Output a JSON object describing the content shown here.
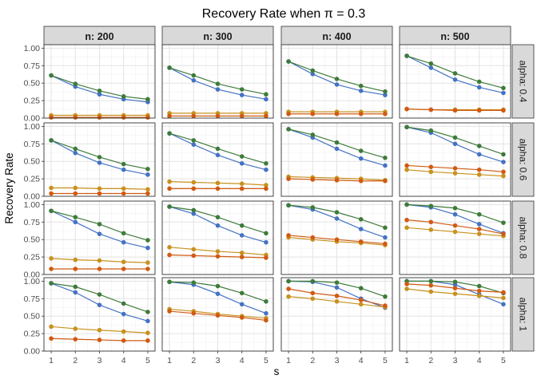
{
  "chart_data": {
    "type": "line",
    "title": "Recovery Rate when π = 0.3",
    "xlabel": "s",
    "ylabel": "Recovery Rate",
    "x": [
      1,
      2,
      3,
      4,
      5
    ],
    "x_ticks": [
      "1",
      "2",
      "3",
      "4",
      "5"
    ],
    "y_ticks": [
      "0.00",
      "0.25",
      "0.50",
      "0.75",
      "1.00"
    ],
    "ylim": [
      0,
      1.05
    ],
    "grid": true,
    "col_facets": [
      "n: 200",
      "n: 300",
      "n: 400",
      "n: 500"
    ],
    "row_facets": [
      "alpha: 0.4",
      "alpha: 0.6",
      "alpha: 0.8",
      "alpha: 1"
    ],
    "series_colors": [
      "#4472C4",
      "#3E7B3A",
      "#C8911E",
      "#D05A12"
    ],
    "panels": [
      [
        {
          "series": [
            {
              "values": [
                0.61,
                0.45,
                0.34,
                0.27,
                0.23
              ]
            },
            {
              "values": [
                0.61,
                0.49,
                0.39,
                0.31,
                0.27
              ]
            },
            {
              "values": [
                0.04,
                0.04,
                0.04,
                0.04,
                0.04
              ]
            },
            {
              "values": [
                0.01,
                0.01,
                0.01,
                0.01,
                0.01
              ]
            }
          ]
        },
        {
          "series": [
            {
              "values": [
                0.72,
                0.54,
                0.41,
                0.33,
                0.27
              ]
            },
            {
              "values": [
                0.72,
                0.61,
                0.49,
                0.41,
                0.34
              ]
            },
            {
              "values": [
                0.07,
                0.07,
                0.07,
                0.07,
                0.07
              ]
            },
            {
              "values": [
                0.03,
                0.03,
                0.03,
                0.03,
                0.03
              ]
            }
          ]
        },
        {
          "series": [
            {
              "values": [
                0.81,
                0.63,
                0.48,
                0.39,
                0.33
              ]
            },
            {
              "values": [
                0.81,
                0.68,
                0.56,
                0.46,
                0.38
              ]
            },
            {
              "values": [
                0.09,
                0.09,
                0.09,
                0.09,
                0.09
              ]
            },
            {
              "values": [
                0.06,
                0.06,
                0.06,
                0.06,
                0.06
              ]
            }
          ]
        },
        {
          "series": [
            {
              "values": [
                0.89,
                0.72,
                0.55,
                0.44,
                0.36
              ]
            },
            {
              "values": [
                0.89,
                0.78,
                0.64,
                0.52,
                0.43
              ]
            },
            {
              "values": [
                0.13,
                0.12,
                0.12,
                0.12,
                0.12
              ]
            },
            {
              "values": [
                0.13,
                0.12,
                0.11,
                0.11,
                0.11
              ]
            }
          ]
        }
      ],
      [
        {
          "series": [
            {
              "values": [
                0.8,
                0.62,
                0.48,
                0.38,
                0.31
              ]
            },
            {
              "values": [
                0.8,
                0.68,
                0.56,
                0.46,
                0.39
              ]
            },
            {
              "values": [
                0.12,
                0.12,
                0.11,
                0.11,
                0.1
              ]
            },
            {
              "values": [
                0.04,
                0.04,
                0.04,
                0.04,
                0.04
              ]
            }
          ]
        },
        {
          "series": [
            {
              "values": [
                0.9,
                0.74,
                0.59,
                0.47,
                0.38
              ]
            },
            {
              "values": [
                0.9,
                0.8,
                0.68,
                0.57,
                0.47
              ]
            },
            {
              "values": [
                0.21,
                0.2,
                0.19,
                0.18,
                0.16
              ]
            },
            {
              "values": [
                0.11,
                0.11,
                0.11,
                0.11,
                0.11
              ]
            }
          ]
        },
        {
          "series": [
            {
              "values": [
                0.96,
                0.84,
                0.68,
                0.54,
                0.44
              ]
            },
            {
              "values": [
                0.96,
                0.88,
                0.77,
                0.65,
                0.55
              ]
            },
            {
              "values": [
                0.28,
                0.27,
                0.26,
                0.25,
                0.23
              ]
            },
            {
              "values": [
                0.25,
                0.24,
                0.23,
                0.22,
                0.22
              ]
            }
          ]
        },
        {
          "series": [
            {
              "values": [
                0.99,
                0.91,
                0.75,
                0.6,
                0.49
              ]
            },
            {
              "values": [
                0.99,
                0.94,
                0.84,
                0.72,
                0.6
              ]
            },
            {
              "values": [
                0.38,
                0.35,
                0.33,
                0.31,
                0.29
              ]
            },
            {
              "values": [
                0.44,
                0.42,
                0.4,
                0.38,
                0.35
              ]
            }
          ]
        }
      ],
      [
        {
          "series": [
            {
              "values": [
                0.91,
                0.75,
                0.58,
                0.46,
                0.38
              ]
            },
            {
              "values": [
                0.91,
                0.82,
                0.72,
                0.59,
                0.49
              ]
            },
            {
              "values": [
                0.23,
                0.21,
                0.2,
                0.18,
                0.17
              ]
            },
            {
              "values": [
                0.08,
                0.08,
                0.08,
                0.08,
                0.08
              ]
            }
          ]
        },
        {
          "series": [
            {
              "values": [
                0.97,
                0.87,
                0.7,
                0.56,
                0.46
              ]
            },
            {
              "values": [
                0.97,
                0.92,
                0.82,
                0.7,
                0.59
              ]
            },
            {
              "values": [
                0.39,
                0.36,
                0.33,
                0.31,
                0.28
              ]
            },
            {
              "values": [
                0.28,
                0.27,
                0.26,
                0.25,
                0.24
              ]
            }
          ]
        },
        {
          "series": [
            {
              "values": [
                0.99,
                0.93,
                0.8,
                0.65,
                0.53
              ]
            },
            {
              "values": [
                0.99,
                0.96,
                0.89,
                0.79,
                0.67
              ]
            },
            {
              "values": [
                0.53,
                0.5,
                0.47,
                0.45,
                0.42
              ]
            },
            {
              "values": [
                0.56,
                0.53,
                0.5,
                0.47,
                0.44
              ]
            }
          ]
        },
        {
          "series": [
            {
              "values": [
                1.0,
                0.96,
                0.86,
                0.72,
                0.59
              ]
            },
            {
              "values": [
                1.0,
                0.98,
                0.95,
                0.86,
                0.74
              ]
            },
            {
              "values": [
                0.67,
                0.64,
                0.61,
                0.58,
                0.55
              ]
            },
            {
              "values": [
                0.78,
                0.75,
                0.7,
                0.65,
                0.58
              ]
            }
          ]
        }
      ],
      [
        {
          "series": [
            {
              "values": [
                0.97,
                0.84,
                0.66,
                0.53,
                0.43
              ]
            },
            {
              "values": [
                0.97,
                0.92,
                0.81,
                0.68,
                0.56
              ]
            },
            {
              "values": [
                0.35,
                0.32,
                0.3,
                0.28,
                0.26
              ]
            },
            {
              "values": [
                0.18,
                0.17,
                0.16,
                0.15,
                0.15
              ]
            }
          ]
        },
        {
          "series": [
            {
              "values": [
                0.99,
                0.95,
                0.82,
                0.67,
                0.54
              ]
            },
            {
              "values": [
                0.99,
                0.98,
                0.93,
                0.83,
                0.71
              ]
            },
            {
              "values": [
                0.6,
                0.57,
                0.53,
                0.5,
                0.47
              ]
            },
            {
              "values": [
                0.57,
                0.54,
                0.51,
                0.48,
                0.44
              ]
            }
          ]
        },
        {
          "series": [
            {
              "values": [
                1.0,
                0.99,
                0.91,
                0.75,
                0.62
              ]
            },
            {
              "values": [
                1.0,
                1.0,
                0.98,
                0.9,
                0.78
              ]
            },
            {
              "values": [
                0.78,
                0.75,
                0.71,
                0.67,
                0.63
              ]
            },
            {
              "values": [
                0.89,
                0.83,
                0.79,
                0.73,
                0.65
              ]
            }
          ]
        },
        {
          "series": [
            {
              "values": [
                1.0,
                1.0,
                0.95,
                0.81,
                0.67
              ]
            },
            {
              "values": [
                1.0,
                1.0,
                0.99,
                0.93,
                0.83
              ]
            },
            {
              "values": [
                0.89,
                0.85,
                0.82,
                0.79,
                0.76
              ]
            },
            {
              "values": [
                0.96,
                0.94,
                0.9,
                0.86,
                0.84
              ]
            }
          ]
        }
      ]
    ]
  }
}
